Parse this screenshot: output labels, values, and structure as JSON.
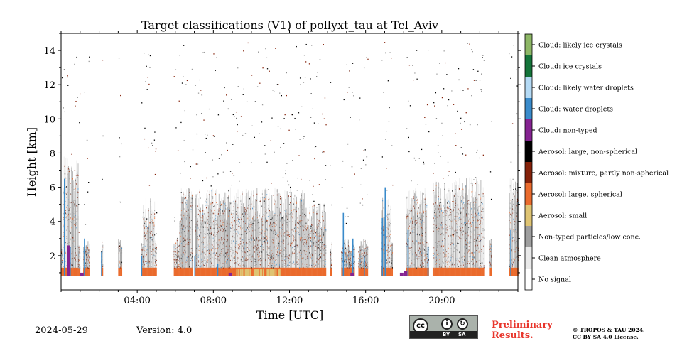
{
  "chart_data": {
    "type": "heatmap",
    "title": "Target classifications (V1) of pollyxt_tau at Tel_Aviv",
    "xlabel": "Time [UTC]",
    "ylabel": "Height [km]",
    "xlim": [
      0,
      24
    ],
    "ylim": [
      0,
      15
    ],
    "x_ticks": [
      4,
      8,
      12,
      16,
      20
    ],
    "x_tick_labels": [
      "04:00",
      "08:00",
      "12:00",
      "16:00",
      "20:00"
    ],
    "y_ticks": [
      2,
      4,
      6,
      8,
      10,
      12,
      14
    ],
    "y_tick_labels": [
      "2",
      "4",
      "6",
      "8",
      "10",
      "12",
      "14"
    ],
    "grid": false,
    "legend_placement": "right colorbar",
    "categories": [
      {
        "code": 11,
        "label": "Cloud: likely ice crystals",
        "color": "#8db766"
      },
      {
        "code": 10,
        "label": "Cloud: ice crystals",
        "color": "#14743a"
      },
      {
        "code": 9,
        "label": "Cloud: likely water droplets",
        "color": "#b4daf5"
      },
      {
        "code": 8,
        "label": "Cloud: water droplets",
        "color": "#3a8bcb"
      },
      {
        "code": 7,
        "label": "Cloud: non-typed",
        "color": "#852391"
      },
      {
        "code": 6,
        "label": "Aerosol: large, non-spherical",
        "color": "#000000"
      },
      {
        "code": 5,
        "label": "Aerosol: mixture, partly non-spherical",
        "color": "#85220a"
      },
      {
        "code": 4,
        "label": "Aerosol: large, spherical",
        "color": "#ea6b2d"
      },
      {
        "code": 3,
        "label": "Aerosol: small",
        "color": "#dfc473"
      },
      {
        "code": 2,
        "label": "Non-typed particles/low conc.",
        "color": "#9e9e9e"
      },
      {
        "code": 1,
        "label": "Clean atmosphere",
        "color": "#e9e9e9"
      },
      {
        "code": 0,
        "label": "No signal",
        "color": "#ffffff"
      }
    ]
  },
  "footer": {
    "date": "2024-05-29",
    "version": "Version: 4.0",
    "preliminary_line1": "Preliminary",
    "preliminary_line2": "Results.",
    "copyright_line1": "© TROPOS & TAU 2024.",
    "copyright_line2": "CC BY SA 4.0 License.",
    "license_badge": {
      "cc": "cc",
      "by": "BY",
      "sa": "SA"
    }
  }
}
